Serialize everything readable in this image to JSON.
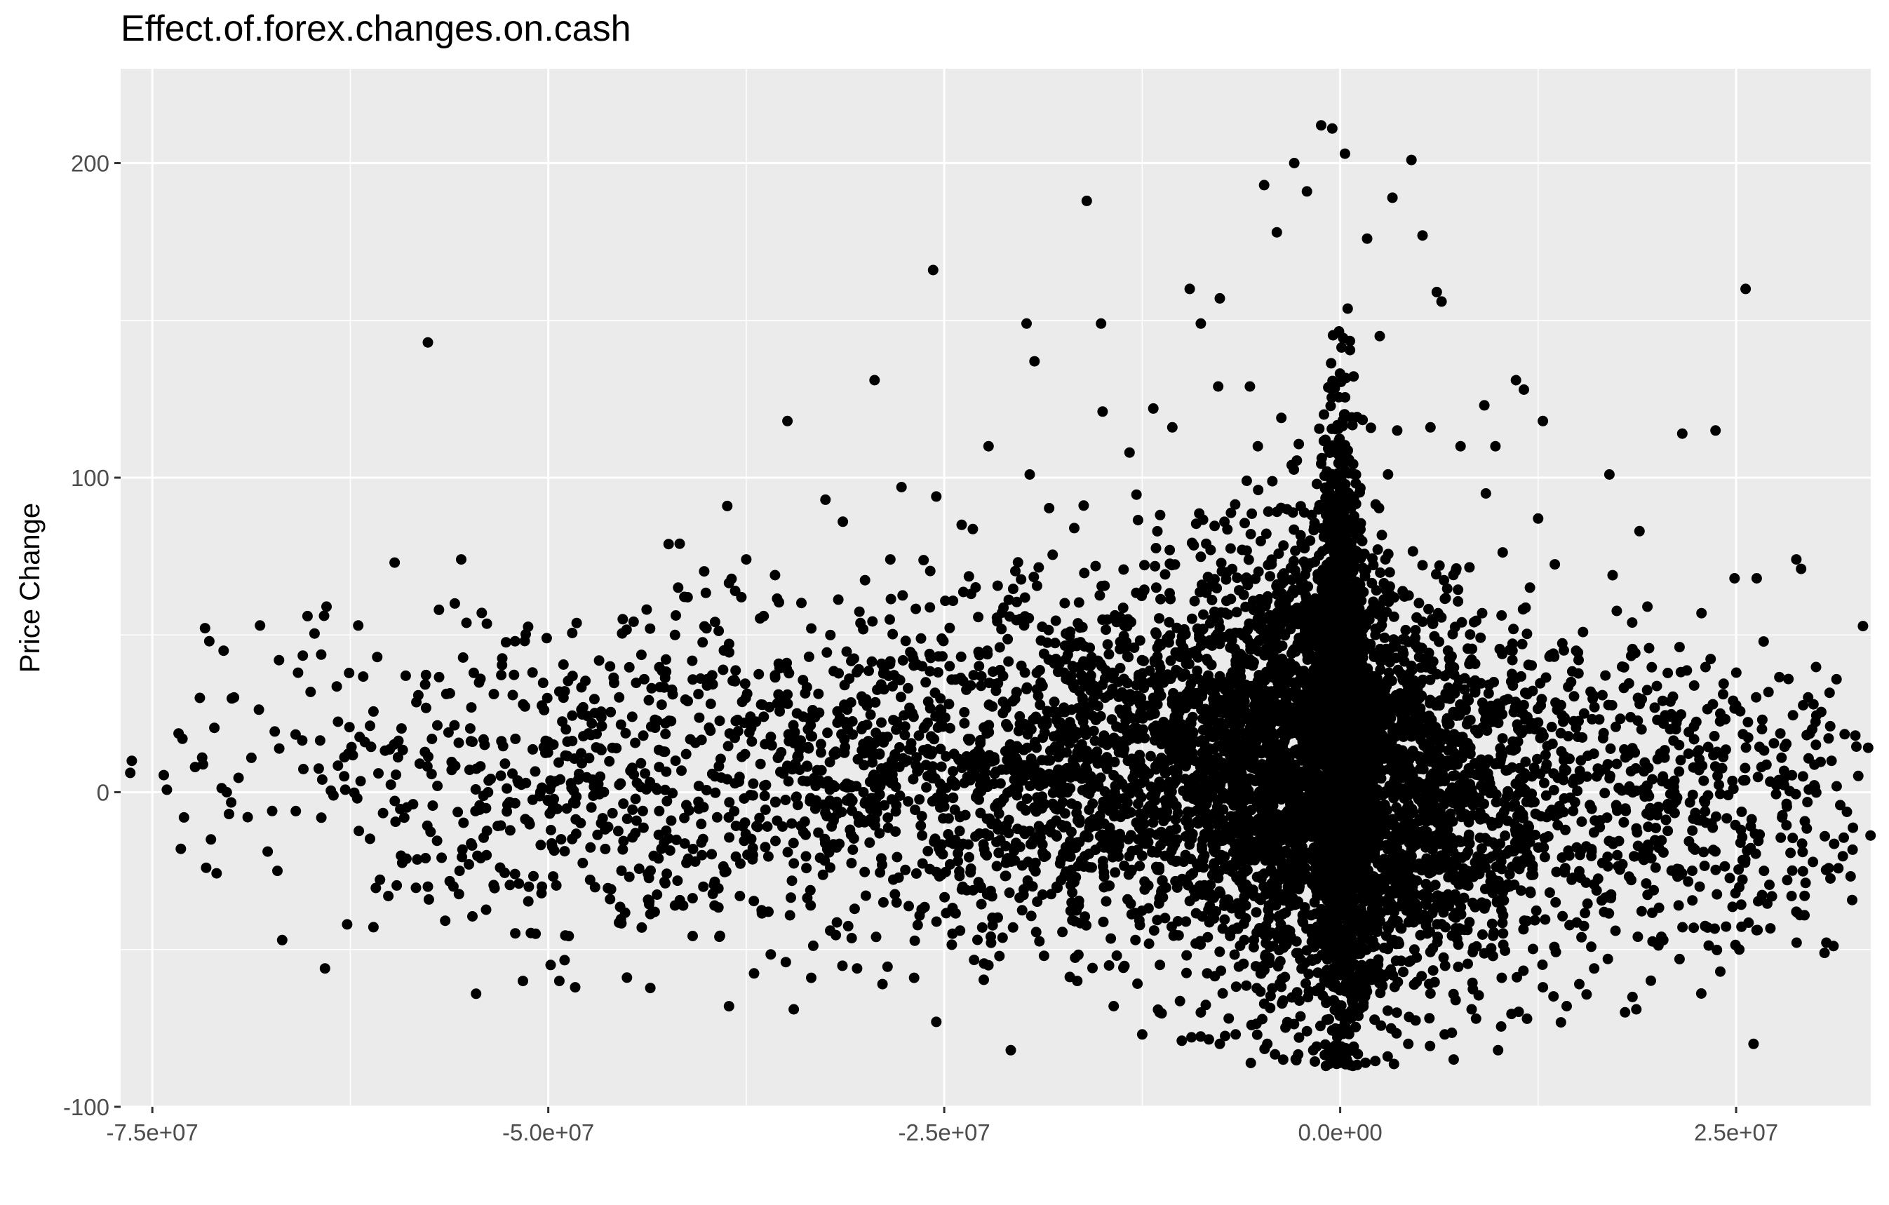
{
  "chart_data": {
    "type": "scatter",
    "title": "Effect.of.forex.changes.on.cash",
    "xlabel": "",
    "ylabel": "Price Change",
    "xlim": [
      -77000000,
      33500000
    ],
    "ylim": [
      -100,
      230
    ],
    "x_ticks": [
      -75000000,
      -50000000,
      -25000000,
      0,
      25000000
    ],
    "x_tick_labels": [
      "-7.5e+07",
      "-5.0e+07",
      "-2.5e+07",
      "0.0e+00",
      "2.5e+07"
    ],
    "y_ticks": [
      -100,
      0,
      100,
      200
    ],
    "y_tick_labels": [
      "-100",
      "0",
      "100",
      "200"
    ],
    "grid": true,
    "background": "#ebebeb",
    "grid_color": "#ffffff",
    "point_color": "#000000",
    "points": [
      [
        -57600000,
        143
      ],
      [
        -59700000,
        73
      ],
      [
        -55500000,
        74
      ],
      [
        -55900000,
        60
      ],
      [
        -56900000,
        58
      ],
      [
        -64000000,
        59
      ],
      [
        -65200000,
        56
      ],
      [
        -68200000,
        53
      ],
      [
        -71400000,
        48
      ],
      [
        -70500000,
        45
      ],
      [
        -62000000,
        53
      ],
      [
        -60800000,
        43
      ],
      [
        -67000000,
        42
      ],
      [
        -65800000,
        38
      ],
      [
        -72000000,
        30
      ],
      [
        -73100000,
        17
      ],
      [
        -72300000,
        8
      ],
      [
        -70300000,
        0
      ],
      [
        -73000000,
        -8
      ],
      [
        -73200000,
        -18
      ],
      [
        -71600000,
        -24
      ],
      [
        -71300000,
        -15
      ],
      [
        -66800000,
        -47
      ],
      [
        -64100000,
        -56
      ],
      [
        -67100000,
        -25
      ],
      [
        -62700000,
        -42
      ],
      [
        -60100000,
        -33
      ],
      [
        -57600000,
        -30
      ],
      [
        -55600000,
        -25
      ],
      [
        -53900000,
        -20
      ],
      [
        -57000000,
        2
      ],
      [
        -56300000,
        19
      ],
      [
        -54200000,
        57
      ],
      [
        -50100000,
        49
      ],
      [
        -49300000,
        32
      ],
      [
        -47800000,
        27
      ],
      [
        -46100000,
        40
      ],
      [
        -45300000,
        55
      ],
      [
        -44700000,
        24
      ],
      [
        -44000000,
        18
      ],
      [
        -43000000,
        8
      ],
      [
        -42000000,
        50
      ],
      [
        -41700000,
        79
      ],
      [
        -41200000,
        62
      ],
      [
        -38700000,
        91
      ],
      [
        -37500000,
        74
      ],
      [
        -38200000,
        64
      ],
      [
        -36400000,
        56
      ],
      [
        -34900000,
        118
      ],
      [
        -32500000,
        93
      ],
      [
        -31400000,
        86
      ],
      [
        -29400000,
        131
      ],
      [
        -27700000,
        97
      ],
      [
        -28400000,
        74
      ],
      [
        -25700000,
        166
      ],
      [
        -25500000,
        94
      ],
      [
        -23900000,
        85
      ],
      [
        -22200000,
        110
      ],
      [
        -19800000,
        149
      ],
      [
        -19300000,
        137
      ],
      [
        -19600000,
        101
      ],
      [
        -16000000,
        188
      ],
      [
        -15100000,
        149
      ],
      [
        -15000000,
        121
      ],
      [
        -13300000,
        108
      ],
      [
        -11800000,
        122
      ],
      [
        -10600000,
        116
      ],
      [
        -9500000,
        160
      ],
      [
        -8800000,
        149
      ],
      [
        -7600000,
        157
      ],
      [
        -7700000,
        129
      ],
      [
        -5700000,
        129
      ],
      [
        -5200000,
        110
      ],
      [
        -5900000,
        99
      ],
      [
        -2900000,
        200
      ],
      [
        -4000000,
        178
      ],
      [
        -4800000,
        193
      ],
      [
        -2100000,
        191
      ],
      [
        -1200000,
        212
      ],
      [
        -500000,
        211
      ],
      [
        300000,
        203
      ],
      [
        1700000,
        176
      ],
      [
        3300000,
        189
      ],
      [
        4500000,
        201
      ],
      [
        5200000,
        177
      ],
      [
        6100000,
        159
      ],
      [
        6400000,
        156
      ],
      [
        2500000,
        145
      ],
      [
        3600000,
        115
      ],
      [
        5700000,
        116
      ],
      [
        7600000,
        110
      ],
      [
        9100000,
        123
      ],
      [
        9800000,
        110
      ],
      [
        11100000,
        131
      ],
      [
        11600000,
        128
      ],
      [
        12800000,
        118
      ],
      [
        12500000,
        87
      ],
      [
        9200000,
        95
      ],
      [
        17000000,
        101
      ],
      [
        18900000,
        83
      ],
      [
        21600000,
        114
      ],
      [
        23700000,
        115
      ],
      [
        25600000,
        160
      ],
      [
        28800000,
        74
      ],
      [
        29100000,
        71
      ],
      [
        26300000,
        68
      ],
      [
        24900000,
        68
      ],
      [
        19400000,
        59
      ],
      [
        17200000,
        69
      ],
      [
        28300000,
        36
      ],
      [
        29800000,
        20
      ],
      [
        30600000,
        -14
      ],
      [
        29200000,
        -19
      ],
      [
        28500000,
        -33
      ],
      [
        28800000,
        -38
      ],
      [
        26100000,
        -80
      ],
      [
        25200000,
        -50
      ],
      [
        24000000,
        -57
      ],
      [
        22800000,
        -64
      ],
      [
        23200000,
        -43
      ],
      [
        20400000,
        -47
      ],
      [
        18700000,
        -69
      ],
      [
        16900000,
        -53
      ],
      [
        15100000,
        -61
      ],
      [
        14300000,
        -68
      ],
      [
        12800000,
        -62
      ],
      [
        11800000,
        -72
      ],
      [
        10200000,
        -59
      ],
      [
        8300000,
        -69
      ],
      [
        6600000,
        -77
      ],
      [
        5700000,
        -64
      ],
      [
        4300000,
        -80
      ],
      [
        3000000,
        -84
      ],
      [
        1600000,
        -86
      ],
      [
        800000,
        -87
      ],
      [
        0,
        -86
      ],
      [
        -900000,
        -87
      ],
      [
        -1700000,
        -82
      ],
      [
        -2600000,
        -78
      ],
      [
        -3600000,
        -85
      ],
      [
        -4600000,
        -80
      ],
      [
        -5600000,
        -74
      ],
      [
        -6600000,
        -77
      ],
      [
        -7600000,
        -80
      ],
      [
        -8800000,
        -70
      ],
      [
        -10000000,
        -79
      ],
      [
        -11400000,
        -70
      ],
      [
        -12500000,
        -77
      ],
      [
        -14300000,
        -68
      ],
      [
        -16600000,
        -60
      ],
      [
        -18700000,
        -52
      ],
      [
        -20800000,
        -82
      ],
      [
        -22600000,
        -43
      ],
      [
        -24000000,
        -44
      ],
      [
        -25500000,
        -73
      ],
      [
        -26900000,
        -59
      ],
      [
        -28900000,
        -61
      ],
      [
        -29300000,
        -46
      ],
      [
        -30500000,
        -56
      ],
      [
        -32200000,
        -44
      ],
      [
        -33400000,
        -59
      ],
      [
        -34500000,
        -69
      ],
      [
        -35000000,
        -54
      ],
      [
        -36100000,
        -38
      ],
      [
        -37900000,
        -33
      ],
      [
        -39500000,
        -36
      ],
      [
        -42000000,
        -36
      ],
      [
        -44100000,
        -43
      ],
      [
        -46100000,
        -34
      ],
      [
        -49300000,
        -60
      ],
      [
        -50400000,
        -30
      ],
      [
        -51600000,
        -60
      ],
      [
        -50800000,
        -45
      ],
      [
        -52100000,
        -26
      ],
      [
        -54600000,
        -6
      ],
      [
        -53800000,
        0
      ],
      [
        -50000000,
        16
      ],
      [
        -47200000,
        4
      ],
      [
        -45700000,
        14
      ],
      [
        -44500000,
        -13
      ],
      [
        -40300000,
        -20
      ],
      [
        -38600000,
        -8
      ],
      [
        -36600000,
        9
      ],
      [
        -35300000,
        30
      ],
      [
        -33600000,
        20
      ],
      [
        -31900000,
        12
      ],
      [
        -30100000,
        0
      ],
      [
        -28600000,
        8
      ],
      [
        -26600000,
        18
      ],
      [
        -24700000,
        28
      ],
      [
        -23000000,
        5
      ],
      [
        -21300000,
        -12
      ],
      [
        -19500000,
        20
      ],
      [
        -17900000,
        -30
      ],
      [
        -16400000,
        40
      ],
      [
        -14900000,
        -10
      ],
      [
        -13400000,
        10
      ],
      [
        -11800000,
        30
      ],
      [
        -10300000,
        -15
      ],
      [
        -8900000,
        50
      ],
      [
        -7500000,
        -20
      ],
      [
        -6100000,
        15
      ],
      [
        -4700000,
        60
      ],
      [
        -3300000,
        -30
      ],
      [
        -1900000,
        80
      ],
      [
        -700000,
        -50
      ],
      [
        600000,
        40
      ],
      [
        1900000,
        -15
      ],
      [
        3200000,
        25
      ],
      [
        4500000,
        -40
      ],
      [
        5800000,
        55
      ],
      [
        7100000,
        10
      ],
      [
        8400000,
        -25
      ],
      [
        9700000,
        35
      ],
      [
        11000000,
        -10
      ],
      [
        12300000,
        20
      ],
      [
        13600000,
        -35
      ],
      [
        14900000,
        45
      ],
      [
        16200000,
        5
      ],
      [
        17500000,
        -20
      ],
      [
        18800000,
        30
      ],
      [
        20100000,
        -5
      ],
      [
        21400000,
        15
      ],
      [
        22700000,
        -30
      ],
      [
        24000000,
        25
      ],
      [
        25300000,
        -12
      ],
      [
        26600000,
        8
      ],
      [
        27900000,
        -8
      ]
    ],
    "cloud_seed": 7,
    "cloud": [
      {
        "x_center": 0,
        "x_spread": 800000,
        "y_center": 15,
        "y_spread": 55,
        "y_min": -87,
        "y_max": 212,
        "n": 1400
      },
      {
        "x_center": -2500000,
        "x_spread": 3500000,
        "y_center": 10,
        "y_spread": 40,
        "y_min": -87,
        "y_max": 200,
        "n": 1600
      },
      {
        "x_center": 3500000,
        "x_spread": 4000000,
        "y_center": 0,
        "y_spread": 35,
        "y_min": -87,
        "y_max": 160,
        "n": 1200
      },
      {
        "x_center": -9000000,
        "x_spread": 6000000,
        "y_center": 10,
        "y_spread": 35,
        "y_min": -80,
        "y_max": 190,
        "n": 1100
      },
      {
        "x_center": -22000000,
        "x_spread": 9000000,
        "y_center": 10,
        "y_spread": 30,
        "y_min": -82,
        "y_max": 170,
        "n": 1000
      },
      {
        "x_center": 12000000,
        "x_spread": 8000000,
        "y_center": -2,
        "y_spread": 30,
        "y_min": -80,
        "y_max": 130,
        "n": 650
      },
      {
        "x_center": -45000000,
        "x_spread": 12000000,
        "y_center": 5,
        "y_spread": 27,
        "y_min": -70,
        "y_max": 120,
        "n": 650
      },
      {
        "x_center": 24000000,
        "x_spread": 5000000,
        "y_center": 0,
        "y_spread": 28,
        "y_min": -80,
        "y_max": 160,
        "n": 240
      }
    ]
  }
}
